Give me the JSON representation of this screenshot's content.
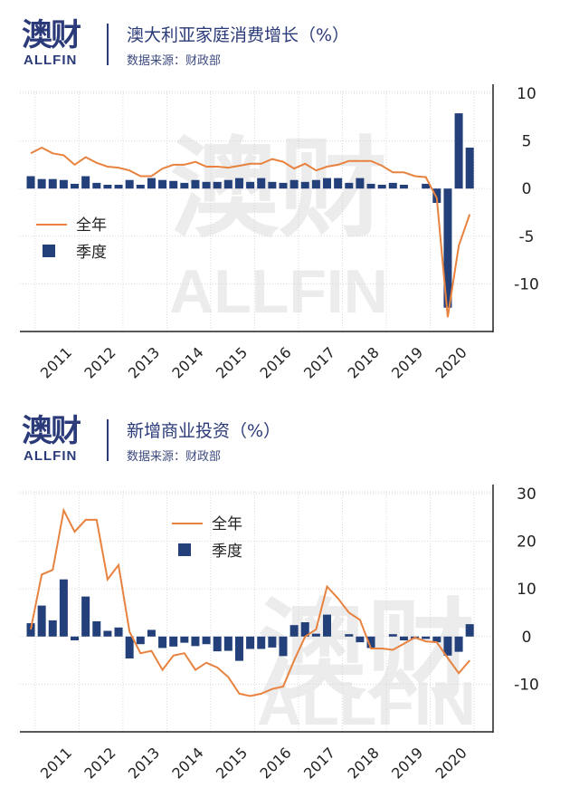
{
  "logo": {
    "cn": "澳财",
    "en": "ALLFIN"
  },
  "colors": {
    "annual": "#e8823f",
    "quarterly": "#24407a",
    "brand": "#2b3a78"
  },
  "charts": [
    {
      "title": "澳大利亚家庭消费增长（%）",
      "source": "数据来源：财政部",
      "watermark_cn": "澳财",
      "watermark_en": "ALLFIN",
      "legend": {
        "annual": "全年",
        "quarterly": "季度"
      }
    },
    {
      "title": "新增商业投资（%）",
      "source": "数据来源：财政部",
      "watermark_cn": "澳财",
      "watermark_en": "ALLFIN",
      "legend": {
        "annual": "全年",
        "quarterly": "季度"
      }
    }
  ],
  "chart_data": [
    {
      "type": "bar",
      "title": "澳大利亚家庭消费增长（%）",
      "xlabel": "",
      "ylabel": "%",
      "x_start": "2010-Q3",
      "x_end": "2020-Q3",
      "year_labels": [
        "2011",
        "2012",
        "2013",
        "2014",
        "2015",
        "2016",
        "2017",
        "2018",
        "2019",
        "2020"
      ],
      "yticks": [
        10,
        5,
        0,
        -5,
        -10
      ],
      "ylim": [
        -15,
        10
      ],
      "legend_position": "left",
      "series": [
        {
          "name": "季度",
          "type": "bar",
          "values": [
            1.3,
            1.0,
            1.0,
            0.9,
            0.5,
            1.3,
            0.6,
            0.4,
            0.4,
            0.9,
            0.4,
            1.1,
            0.9,
            0.8,
            0.6,
            0.9,
            0.7,
            0.7,
            0.9,
            1.1,
            0.7,
            1.1,
            0.7,
            0.6,
            0.9,
            0.7,
            0.9,
            1.1,
            1.1,
            0.6,
            1.1,
            0.5,
            0.4,
            0.6,
            0.4,
            0,
            0.5,
            -1.5,
            -12.5,
            7.9,
            4.3
          ]
        },
        {
          "name": "全年",
          "type": "line",
          "values": [
            3.7,
            4.3,
            3.7,
            3.5,
            2.5,
            3.3,
            2.7,
            2.3,
            2.2,
            1.9,
            1.3,
            1.3,
            2.1,
            2.5,
            2.5,
            2.8,
            2.3,
            2.3,
            2.2,
            2.4,
            2.6,
            2.6,
            3.1,
            2.8,
            2.1,
            2.6,
            1.9,
            2.3,
            2.5,
            2.9,
            2.9,
            2.9,
            2.4,
            1.7,
            1.7,
            1.3,
            1.2,
            -1.0,
            -13.5,
            -6.0,
            -2.7
          ]
        }
      ]
    },
    {
      "type": "bar",
      "title": "新增商业投资（%）",
      "xlabel": "",
      "ylabel": "%",
      "x_start": "2010-Q3",
      "x_end": "2020-Q3",
      "year_labels": [
        "2011",
        "2012",
        "2013",
        "2014",
        "2015",
        "2016",
        "2017",
        "2018",
        "2019",
        "2020"
      ],
      "yticks": [
        30,
        20,
        10,
        0,
        -10
      ],
      "ylim": [
        -20,
        30
      ],
      "legend_position": "top-center",
      "series": [
        {
          "name": "季度",
          "type": "bar",
          "values": [
            2.8,
            6.5,
            3.4,
            12,
            -0.8,
            8.4,
            3.2,
            1.2,
            1.9,
            -4.6,
            -1.6,
            1.4,
            -2.4,
            -2.1,
            -1.3,
            -2.0,
            -1.6,
            -3.1,
            -3.0,
            -5.1,
            -2.6,
            -2.6,
            -2.3,
            -4.1,
            2.4,
            3.0,
            0.6,
            4.6,
            0,
            0.5,
            -1.2,
            -2.4,
            0,
            0.5,
            -0.8,
            -0.5,
            -0.5,
            -1.2,
            -4.0,
            -3.2,
            2.6
          ]
        },
        {
          "name": "全年",
          "type": "line",
          "values": [
            1.5,
            13,
            14,
            26.5,
            22,
            24.5,
            24.5,
            12,
            15,
            1,
            -3.5,
            -3,
            -7,
            -4,
            -3.5,
            -7,
            -5.5,
            -6.5,
            -8.5,
            -12,
            -12.5,
            -12,
            -11,
            -10.5,
            -5,
            0,
            1.5,
            10.5,
            8,
            5,
            3.5,
            -2.5,
            -2.5,
            -2.8,
            -1.5,
            -0.2,
            -1,
            -1.2,
            -4.5,
            -7.7,
            -5
          ]
        }
      ]
    }
  ]
}
